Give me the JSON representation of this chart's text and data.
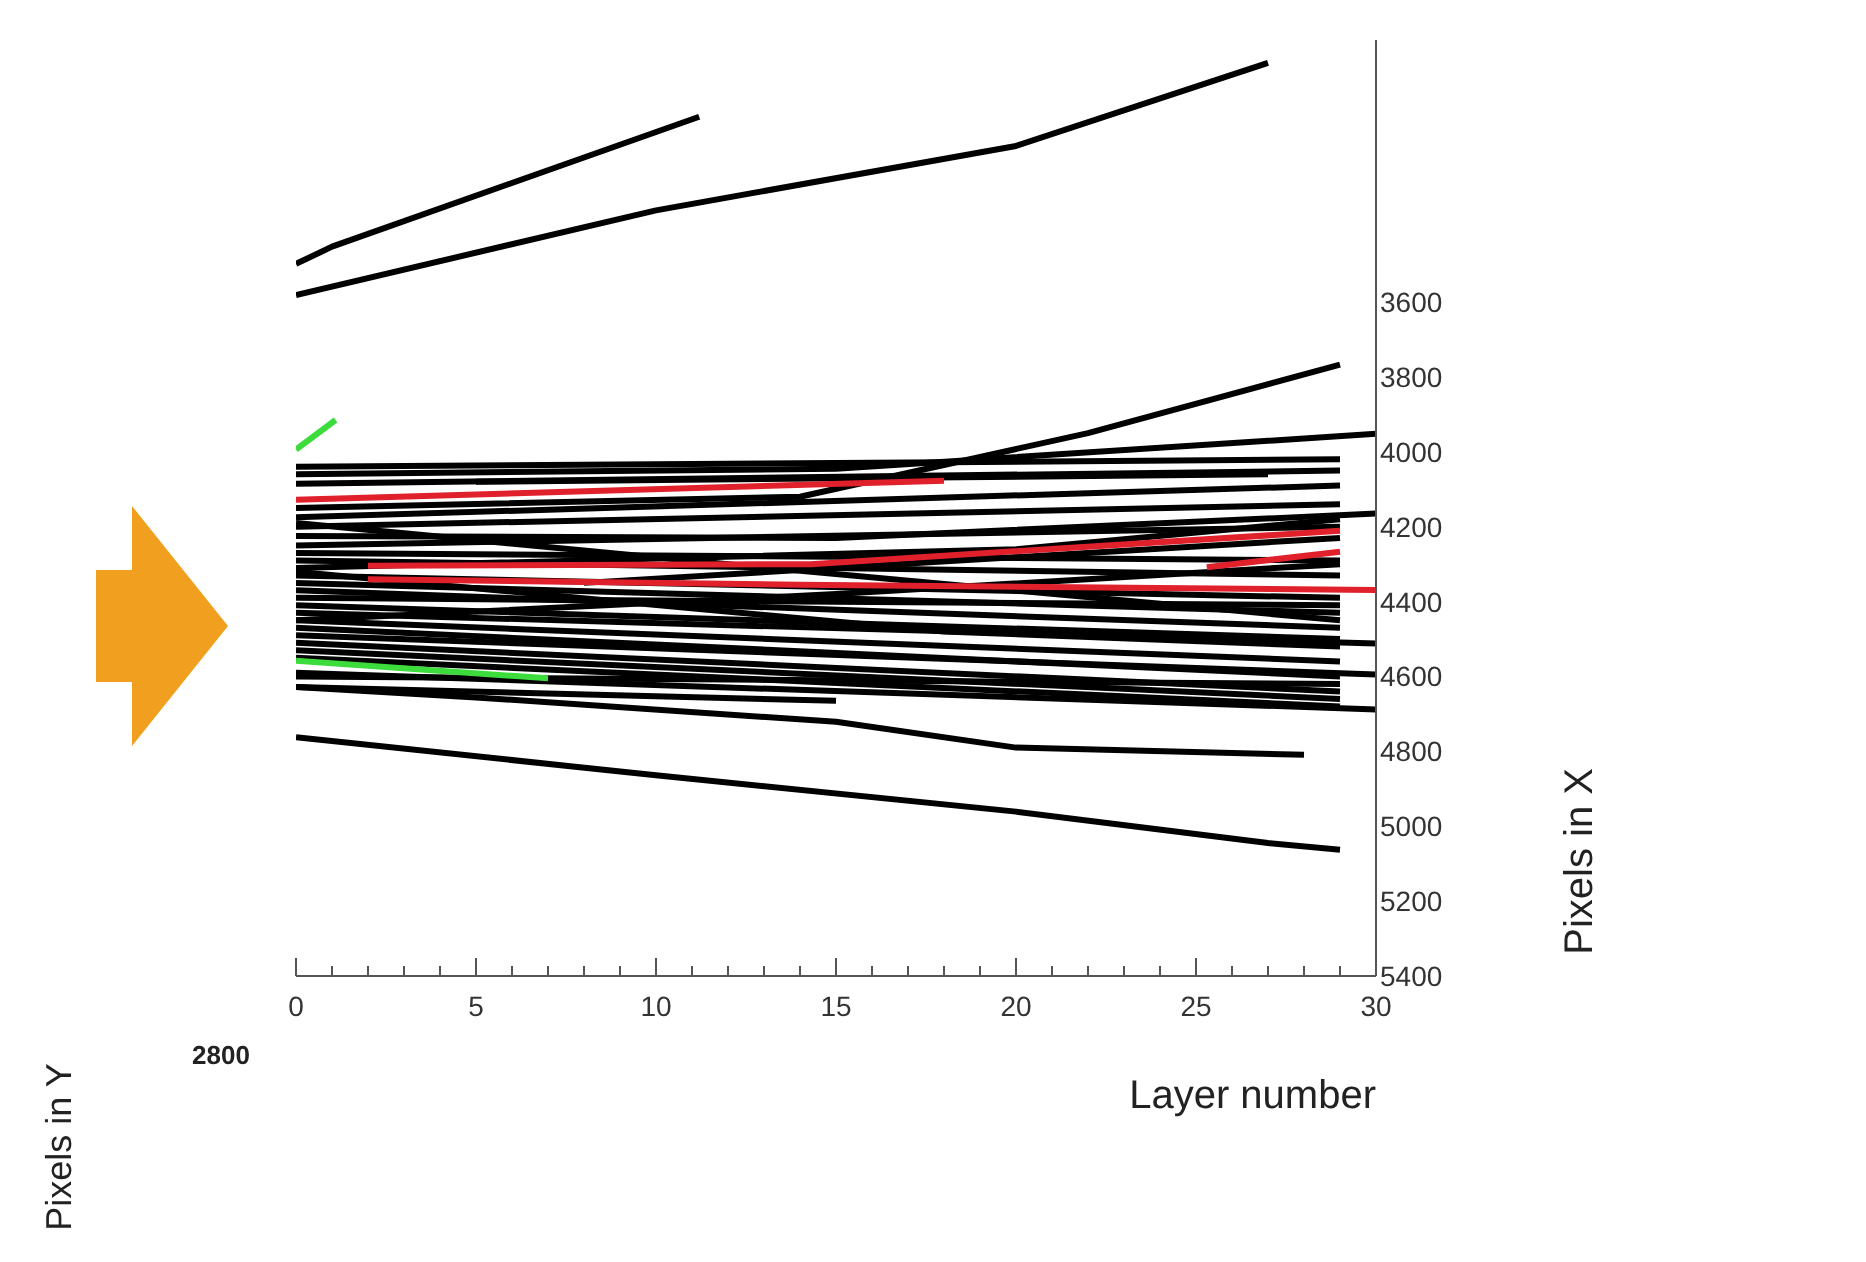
{
  "chart_data": {
    "type": "line",
    "xlabel": "Layer number",
    "ylabel": "Pixels in X",
    "annotations": [
      "Pixels in Y",
      "2800"
    ],
    "xlim": [
      0,
      30
    ],
    "ylim": [
      5400,
      2900
    ],
    "xticks": [
      0,
      {
        "value": 1,
        "label": null
      },
      {
        "value": 2,
        "label": null
      },
      {
        "value": 3,
        "label": null
      },
      {
        "value": 4,
        "label": null
      },
      5,
      {
        "value": 6,
        "label": null
      },
      {
        "value": 7,
        "label": null
      },
      {
        "value": 8,
        "label": null
      },
      {
        "value": 9,
        "label": null
      },
      10,
      {
        "value": 11,
        "label": null
      },
      {
        "value": 12,
        "label": null
      },
      {
        "value": 13,
        "label": null
      },
      {
        "value": 14,
        "label": null
      },
      15,
      {
        "value": 16,
        "label": null
      },
      {
        "value": 17,
        "label": null
      },
      {
        "value": 18,
        "label": null
      },
      {
        "value": 19,
        "label": null
      },
      20,
      {
        "value": 21,
        "label": null
      },
      {
        "value": 22,
        "label": null
      },
      {
        "value": 23,
        "label": null
      },
      {
        "value": 24,
        "label": null
      },
      25,
      {
        "value": 26,
        "label": null
      },
      {
        "value": 27,
        "label": null
      },
      {
        "value": 28,
        "label": null
      },
      {
        "value": 29,
        "label": null
      },
      30
    ],
    "yticks": [
      3600,
      3800,
      4000,
      4200,
      4400,
      4600,
      4800,
      5000,
      5200,
      5400
    ],
    "grid": false,
    "legend": false,
    "marker": "none",
    "line_style": "solid",
    "series": [
      {
        "color": "#000000",
        "x": [
          0,
          1,
          11.2
        ],
        "values": [
          3498,
          3452,
          3105
        ]
      },
      {
        "color": "#000000",
        "x": [
          0,
          10,
          20,
          27
        ],
        "values": [
          3581,
          3355,
          3183,
          2961
        ]
      },
      {
        "color": "#000000",
        "x": [
          0,
          10,
          20,
          27,
          29
        ],
        "values": [
          4762,
          4864,
          4961,
          5045,
          5063
        ]
      },
      {
        "color": "#000000",
        "x": [
          0,
          5,
          15,
          20,
          28
        ],
        "values": [
          4628,
          4656,
          4721,
          4790,
          4809
        ]
      },
      {
        "color": "#000000",
        "x": [
          0,
          15
        ],
        "values": [
          4628,
          4665
        ]
      },
      {
        "color": "#000000",
        "x": [
          0,
          29
        ],
        "values": [
          4040,
          4020
        ]
      },
      {
        "color": "#000000",
        "x": [
          0,
          15,
          30
        ],
        "values": [
          4060,
          4045,
          3952
        ]
      },
      {
        "color": "#000000",
        "x": [
          0,
          29
        ],
        "values": [
          4085,
          4050
        ]
      },
      {
        "color": "#000000",
        "x": [
          0,
          14,
          22,
          29
        ],
        "values": [
          4150,
          4120,
          3950,
          3767
        ]
      },
      {
        "color": "#000000",
        "x": [
          0,
          29
        ],
        "values": [
          4175,
          4090
        ]
      },
      {
        "color": "#000000",
        "x": [
          0,
          29
        ],
        "values": [
          4200,
          4140
        ]
      },
      {
        "color": "#000000",
        "x": [
          0,
          15,
          30
        ],
        "values": [
          4225,
          4230,
          4165
        ]
      },
      {
        "color": "#000000",
        "x": [
          0,
          29
        ],
        "values": [
          4250,
          4200
        ]
      },
      {
        "color": "#000000",
        "x": [
          0,
          29
        ],
        "values": [
          4270,
          4290
        ]
      },
      {
        "color": "#000000",
        "x": [
          0,
          29
        ],
        "values": [
          4290,
          4330
        ]
      },
      {
        "color": "#000000",
        "x": [
          0,
          20,
          29
        ],
        "values": [
          4310,
          4260,
          4180
        ]
      },
      {
        "color": "#000000",
        "x": [
          0,
          29
        ],
        "values": [
          4330,
          4390
        ]
      },
      {
        "color": "#000000",
        "x": [
          0,
          29
        ],
        "values": [
          4350,
          4430
        ]
      },
      {
        "color": "#000000",
        "x": [
          0,
          29
        ],
        "values": [
          4370,
          4470
        ]
      },
      {
        "color": "#000000",
        "x": [
          0,
          29
        ],
        "values": [
          4390,
          4410
        ]
      },
      {
        "color": "#000000",
        "x": [
          0,
          29
        ],
        "values": [
          4410,
          4500
        ]
      },
      {
        "color": "#000000",
        "x": [
          0,
          30
        ],
        "values": [
          4430,
          4512
        ]
      },
      {
        "color": "#000000",
        "x": [
          0,
          29
        ],
        "values": [
          4450,
          4560
        ]
      },
      {
        "color": "#000000",
        "x": [
          0,
          29
        ],
        "values": [
          4470,
          4600
        ]
      },
      {
        "color": "#000000",
        "x": [
          0,
          30
        ],
        "values": [
          4490,
          4595
        ]
      },
      {
        "color": "#000000",
        "x": [
          0,
          29
        ],
        "values": [
          4510,
          4640
        ]
      },
      {
        "color": "#000000",
        "x": [
          0,
          29
        ],
        "values": [
          4530,
          4660
        ]
      },
      {
        "color": "#000000",
        "x": [
          0,
          29
        ],
        "values": [
          4550,
          4680
        ]
      },
      {
        "color": "#000000",
        "x": [
          0,
          30
        ],
        "values": [
          4590,
          4688
        ]
      },
      {
        "color": "#000000",
        "x": [
          0,
          29
        ],
        "values": [
          4600,
          4620
        ]
      },
      {
        "color": "#000000",
        "x": [
          5,
          27
        ],
        "values": [
          4080,
          4060
        ]
      },
      {
        "color": "#000000",
        "x": [
          8,
          29
        ],
        "values": [
          4350,
          4230
        ]
      },
      {
        "color": "#000000",
        "x": [
          0,
          18,
          29
        ],
        "values": [
          4320,
          4480,
          4520
        ]
      },
      {
        "color": "#000000",
        "x": [
          0,
          12,
          29
        ],
        "values": [
          4190,
          4300,
          4450
        ]
      },
      {
        "color": "#000000",
        "x": [
          0,
          15,
          29
        ],
        "values": [
          4450,
          4380,
          4300
        ]
      },
      {
        "color": "#e0202a",
        "x": [
          0,
          18
        ],
        "values": [
          4128,
          4077
        ]
      },
      {
        "color": "#e0202a",
        "x": [
          2,
          14.3,
          29
        ],
        "values": [
          4304,
          4300,
          4211
        ]
      },
      {
        "color": "#e0202a",
        "x": [
          2,
          14,
          30
        ],
        "values": [
          4340,
          4355,
          4369
        ]
      },
      {
        "color": "#e0202a",
        "x": [
          25.3,
          29
        ],
        "values": [
          4308,
          4267
        ]
      },
      {
        "color": "#3ddc3d",
        "x": [
          0,
          1.1
        ],
        "values": [
          3994,
          3915
        ]
      },
      {
        "color": "#3ddc3d",
        "x": [
          0,
          7
        ],
        "values": [
          4558,
          4605
        ]
      }
    ]
  }
}
